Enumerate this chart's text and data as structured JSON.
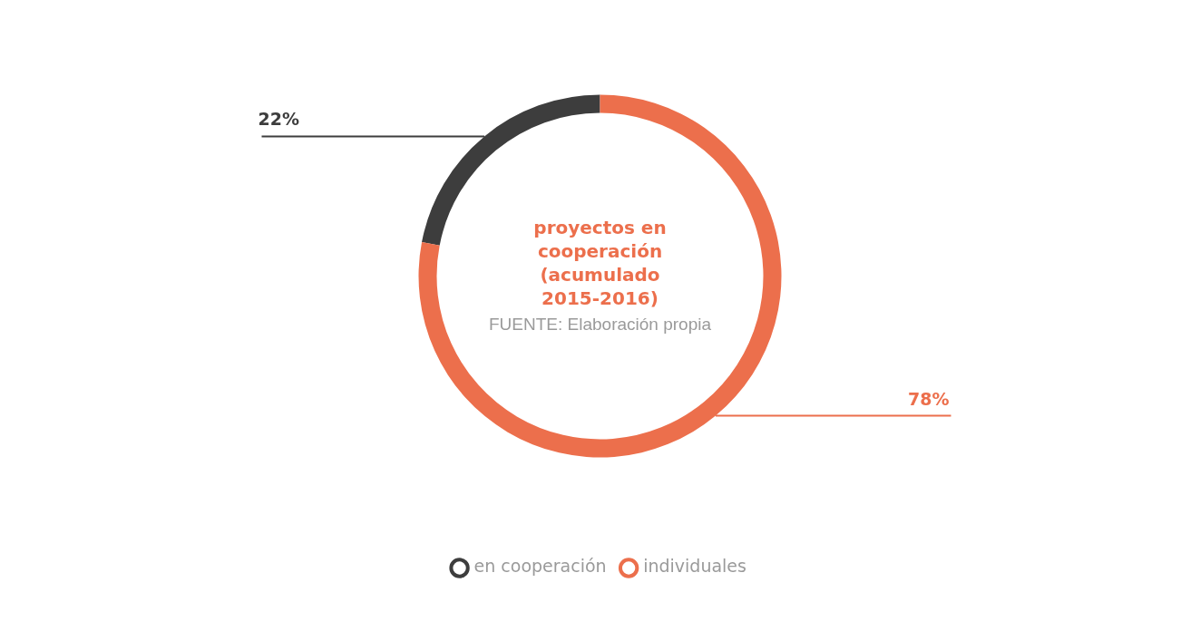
{
  "chart_data": {
    "type": "donut",
    "title": "proyectos en cooperación (acumulado 2015-2016)",
    "categories": [
      "en cooperación",
      "individuales"
    ],
    "values": [
      22,
      78
    ],
    "colors": [
      "#3d3d3d",
      "#ec6f4c"
    ],
    "value_labels": [
      "22%",
      "78%"
    ],
    "annotations": [
      "FUENTE: Elaboración propia"
    ],
    "legend": "bottom"
  }
}
